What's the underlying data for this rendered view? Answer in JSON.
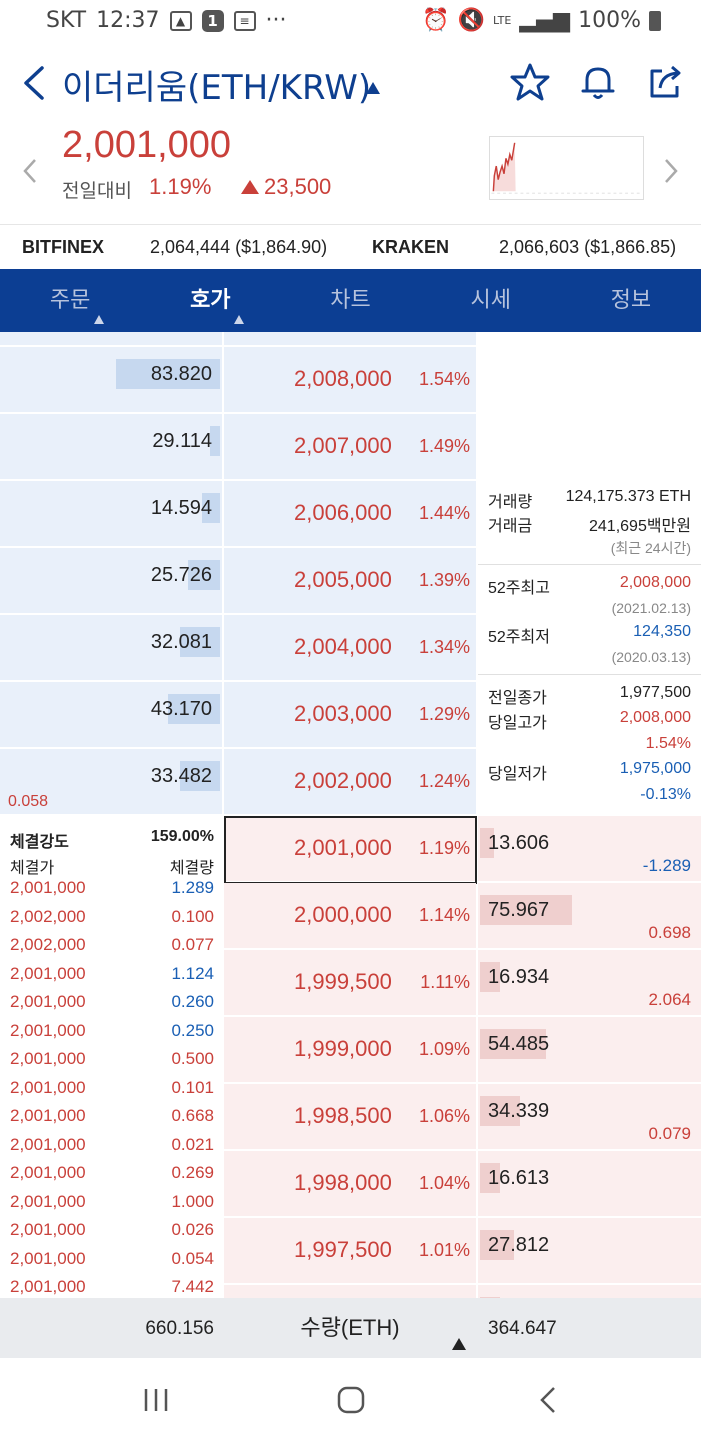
{
  "status_bar": {
    "carrier": "SKT",
    "time": "12:37",
    "notification_count": "1",
    "dots": "···",
    "network": "LTE",
    "battery": "100%"
  },
  "header": {
    "title": "이더리움(ETH/KRW)"
  },
  "price": {
    "current": "2,001,000",
    "diff_label": "전일대비",
    "diff_rate": "1.19%",
    "diff_amount": "23,500",
    "up_color": "#c9403a",
    "down_color": "#1a5fb4"
  },
  "exchanges": [
    {
      "name": "BITFINEX",
      "value": "2,064,444 ($1,864.90)"
    },
    {
      "name": "KRAKEN",
      "value": "2,066,603 ($1,866.85)"
    }
  ],
  "tabs": [
    {
      "label": "주문",
      "has_caret": true
    },
    {
      "label": "호가",
      "has_caret": true,
      "active": true
    },
    {
      "label": "차트"
    },
    {
      "label": "시세"
    },
    {
      "label": "정보"
    }
  ],
  "asks": [
    {
      "volume": "83.820",
      "price": "2,008,000",
      "rate": "1.54%",
      "fill": 0.52
    },
    {
      "volume": "29.114",
      "price": "2,007,000",
      "rate": "1.49%",
      "fill": 0.05
    },
    {
      "volume": "14.594",
      "price": "2,006,000",
      "rate": "1.44%",
      "fill": 0.09
    },
    {
      "volume": "25.726",
      "price": "2,005,000",
      "rate": "1.39%",
      "fill": 0.16
    },
    {
      "volume": "32.081",
      "price": "2,004,000",
      "rate": "1.34%",
      "fill": 0.2
    },
    {
      "volume": "43.170",
      "price": "2,003,000",
      "rate": "1.29%",
      "fill": 0.26
    },
    {
      "volume": "33.482",
      "price": "2,002,000",
      "rate": "1.24%",
      "fill": 0.2
    }
  ],
  "ask_change": "0.058",
  "bids": [
    {
      "volume": "13.606",
      "price": "2,001,000",
      "rate": "1.19%",
      "fill": 0.07,
      "change": "-1.289",
      "change_dir": "down",
      "current": true
    },
    {
      "volume": "75.967",
      "price": "2,000,000",
      "rate": "1.14%",
      "fill": 0.46,
      "change": "0.698",
      "change_dir": "up"
    },
    {
      "volume": "16.934",
      "price": "1,999,500",
      "rate": "1.11%",
      "fill": 0.1,
      "change": "2.064",
      "change_dir": "up"
    },
    {
      "volume": "54.485",
      "price": "1,999,000",
      "rate": "1.09%",
      "fill": 0.33,
      "change": "",
      "change_dir": "up"
    },
    {
      "volume": "34.339",
      "price": "1,998,500",
      "rate": "1.06%",
      "fill": 0.2,
      "change": "0.079",
      "change_dir": "up"
    },
    {
      "volume": "16.613",
      "price": "1,998,000",
      "rate": "1.04%",
      "fill": 0.1,
      "change": "",
      "change_dir": "up"
    },
    {
      "volume": "27.812",
      "price": "1,997,500",
      "rate": "1.01%",
      "fill": 0.17,
      "change": "",
      "change_dir": "up"
    }
  ],
  "info_panel": {
    "volume_label": "거래량",
    "volume_value": "124,175.373 ETH",
    "amount_label": "거래금",
    "amount_value": "241,695백만원",
    "recent_note": "(최근 24시간)",
    "high52_label": "52주최고",
    "high52_value": "2,008,000",
    "high52_date": "(2021.02.13)",
    "low52_label": "52주최저",
    "low52_value": "124,350",
    "low52_date": "(2020.03.13)",
    "prev_close_label": "전일종가",
    "prev_close_value": "1,977,500",
    "day_high_label": "당일고가",
    "day_high_value": "2,008,000",
    "day_high_rate": "1.54%",
    "day_low_label": "당일저가",
    "day_low_value": "1,975,000",
    "day_low_rate": "-0.13%"
  },
  "trade_strength": {
    "label": "체결강도",
    "value": "159.00%",
    "price_header": "체결가",
    "qty_header": "체결량",
    "trades": [
      {
        "price": "2,001,000",
        "qty": "1.289",
        "side": "sell"
      },
      {
        "price": "2,002,000",
        "qty": "0.100",
        "side": "buy"
      },
      {
        "price": "2,002,000",
        "qty": "0.077",
        "side": "buy"
      },
      {
        "price": "2,001,000",
        "qty": "1.124",
        "side": "sell"
      },
      {
        "price": "2,001,000",
        "qty": "0.260",
        "side": "sell"
      },
      {
        "price": "2,001,000",
        "qty": "0.250",
        "side": "sell"
      },
      {
        "price": "2,001,000",
        "qty": "0.500",
        "side": "buy"
      },
      {
        "price": "2,001,000",
        "qty": "0.101",
        "side": "buy"
      },
      {
        "price": "2,001,000",
        "qty": "0.668",
        "side": "buy"
      },
      {
        "price": "2,001,000",
        "qty": "0.021",
        "side": "buy"
      },
      {
        "price": "2,001,000",
        "qty": "0.269",
        "side": "buy"
      },
      {
        "price": "2,001,000",
        "qty": "1.000",
        "side": "buy"
      },
      {
        "price": "2,001,000",
        "qty": "0.026",
        "side": "buy"
      },
      {
        "price": "2,001,000",
        "qty": "0.054",
        "side": "buy"
      },
      {
        "price": "2,001,000",
        "qty": "7.442",
        "side": "buy"
      }
    ]
  },
  "footer": {
    "ask_total": "660.156",
    "unit_label": "수량(ETH)",
    "bid_total": "364.647"
  },
  "colors": {
    "brand_navy": "#0c3e93",
    "up": "#c9403a",
    "down": "#1a5fb4",
    "ask_bg": "#e9f0fa",
    "bid_bg": "#fbeeee"
  }
}
